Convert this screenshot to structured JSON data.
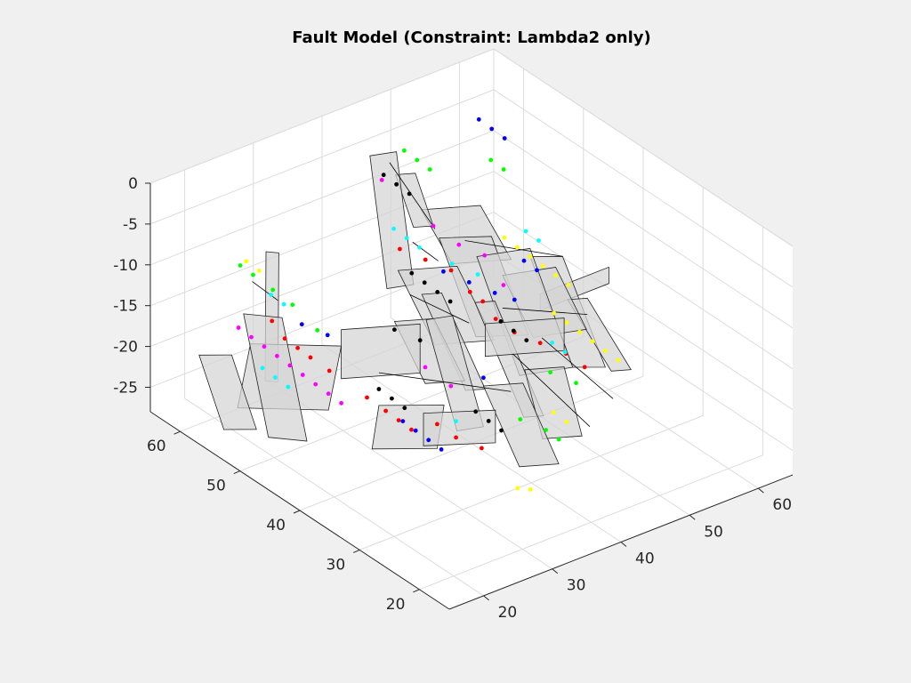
{
  "chart_data": {
    "type": "scatter",
    "title": "Fault Model (Constraint: Lambda2 only)",
    "xlabel": "",
    "ylabel": "",
    "zlabel": "",
    "xlim": [
      15,
      65
    ],
    "ylim": [
      15,
      65
    ],
    "zlim": [
      -28,
      0
    ],
    "x_ticks": [
      "20",
      "30",
      "40",
      "50",
      "60"
    ],
    "y_ticks": [
      "20",
      "30",
      "40",
      "50",
      "60"
    ],
    "z_ticks": [
      "0",
      "-5",
      "-10",
      "-15",
      "-20",
      "-25"
    ],
    "grid": true,
    "view": "3d-perspective",
    "colors": [
      "#ff0000",
      "#00ff00",
      "#0000ff",
      "#00ffff",
      "#ff00ff",
      "#ffff00",
      "#000000"
    ],
    "fault_color": "#c8c8c8",
    "series": [
      {
        "color": "#ff0000",
        "points": [
          [
            24,
            55,
            -15
          ],
          [
            25,
            54,
            -17
          ],
          [
            26,
            53,
            -18
          ],
          [
            27,
            52,
            -19
          ],
          [
            28,
            50,
            -20
          ],
          [
            30,
            46,
            -22
          ],
          [
            31,
            44,
            -23
          ],
          [
            32,
            43,
            -24
          ],
          [
            33,
            42,
            -25
          ],
          [
            35,
            40,
            -24
          ],
          [
            36,
            38,
            -25
          ],
          [
            38,
            36,
            -26
          ],
          [
            40,
            52,
            -10
          ],
          [
            42,
            50,
            -11
          ],
          [
            44,
            48,
            -12
          ],
          [
            45,
            46,
            -14
          ],
          [
            46,
            45,
            -15
          ],
          [
            47,
            44,
            -17
          ],
          [
            48,
            42,
            -18
          ],
          [
            50,
            40,
            -19
          ],
          [
            52,
            38,
            -20
          ],
          [
            53,
            36,
            -21
          ]
        ]
      },
      {
        "color": "#00ff00",
        "points": [
          [
            22,
            58,
            -9
          ],
          [
            23,
            57,
            -10
          ],
          [
            25,
            56,
            -12
          ],
          [
            27,
            55,
            -14
          ],
          [
            28,
            52,
            -16
          ],
          [
            45,
            57,
            -2
          ],
          [
            46,
            56,
            -3
          ],
          [
            47,
            55,
            -4
          ],
          [
            55,
            54,
            -5
          ],
          [
            56,
            53,
            -6
          ],
          [
            41,
            33,
            -22
          ],
          [
            43,
            31,
            -23
          ],
          [
            44,
            30,
            -24
          ],
          [
            48,
            36,
            -20
          ],
          [
            50,
            34,
            -21
          ]
        ]
      },
      {
        "color": "#0000ff",
        "points": [
          [
            55,
            56,
            -1
          ],
          [
            56,
            55,
            -2
          ],
          [
            57,
            54,
            -3
          ],
          [
            24,
            50,
            -13
          ],
          [
            26,
            48,
            -14
          ],
          [
            30,
            40,
            -22
          ],
          [
            31,
            39,
            -23
          ],
          [
            32,
            38,
            -24
          ],
          [
            33,
            37,
            -25
          ],
          [
            42,
            47,
            -11
          ],
          [
            44,
            45,
            -12
          ],
          [
            46,
            43,
            -13
          ],
          [
            48,
            42,
            -14
          ],
          [
            52,
            45,
            -12
          ],
          [
            53,
            44,
            -13
          ],
          [
            40,
            38,
            -19
          ]
        ]
      },
      {
        "color": "#00ffff",
        "points": [
          [
            23,
            54,
            -11
          ],
          [
            24,
            53,
            -12
          ],
          [
            20,
            52,
            -18
          ],
          [
            21,
            51,
            -19
          ],
          [
            22,
            50,
            -20
          ],
          [
            40,
            53,
            -8
          ],
          [
            41,
            52,
            -9
          ],
          [
            42,
            51,
            -10
          ],
          [
            45,
            49,
            -12
          ],
          [
            47,
            47,
            -13
          ],
          [
            54,
            47,
            -10
          ],
          [
            55,
            46,
            -11
          ],
          [
            50,
            38,
            -18
          ],
          [
            51,
            37,
            -19
          ],
          [
            36,
            38,
            -23
          ]
        ]
      },
      {
        "color": "#ff00ff",
        "points": [
          [
            20,
            56,
            -15
          ],
          [
            21,
            55,
            -16
          ],
          [
            22,
            54,
            -17
          ],
          [
            23,
            53,
            -18
          ],
          [
            24,
            52,
            -19
          ],
          [
            25,
            51,
            -20
          ],
          [
            26,
            50,
            -21
          ],
          [
            27,
            49,
            -22
          ],
          [
            28,
            48,
            -23
          ],
          [
            40,
            55,
            -3
          ],
          [
            44,
            51,
            -8
          ],
          [
            46,
            49,
            -10
          ],
          [
            48,
            47,
            -11
          ],
          [
            35,
            42,
            -18
          ],
          [
            37,
            40,
            -20
          ],
          [
            49,
            45,
            -14
          ]
        ]
      },
      {
        "color": "#ffff00",
        "points": [
          [
            22,
            57,
            -8
          ],
          [
            23,
            56,
            -9
          ],
          [
            50,
            46,
            -9
          ],
          [
            51,
            45,
            -10
          ],
          [
            52,
            44,
            -11
          ],
          [
            53,
            43,
            -12
          ],
          [
            54,
            42,
            -13
          ],
          [
            55,
            41,
            -14
          ],
          [
            52,
            40,
            -16
          ],
          [
            53,
            39,
            -17
          ],
          [
            54,
            38,
            -18
          ],
          [
            55,
            37,
            -19
          ],
          [
            56,
            36,
            -20
          ],
          [
            57,
            35,
            -21
          ],
          [
            45,
            32,
            -22
          ],
          [
            46,
            31,
            -23
          ],
          [
            38,
            30,
            -28
          ],
          [
            39,
            29,
            -28
          ]
        ]
      },
      {
        "color": "#000000",
        "points": [
          [
            42,
            57,
            -4
          ],
          [
            43,
            56,
            -5
          ],
          [
            44,
            55,
            -6
          ],
          [
            40,
            50,
            -12
          ],
          [
            41,
            49,
            -13
          ],
          [
            42,
            48,
            -14
          ],
          [
            43,
            47,
            -15
          ],
          [
            30,
            44,
            -20
          ],
          [
            31,
            43,
            -21
          ],
          [
            32,
            42,
            -22
          ],
          [
            38,
            37,
            -22
          ],
          [
            39,
            36,
            -23
          ],
          [
            40,
            35,
            -24
          ],
          [
            46,
            42,
            -16
          ],
          [
            47,
            41,
            -17
          ],
          [
            48,
            40,
            -18
          ],
          [
            36,
            44,
            -16
          ],
          [
            34,
            46,
            -15
          ]
        ]
      }
    ],
    "faults": [
      [
        [
          24,
          56,
          -7
        ],
        [
          25,
          55,
          -7
        ],
        [
          24,
          54,
          -22
        ],
        [
          23,
          55,
          -22
        ]
      ],
      [
        [
          20,
          54,
          -16
        ],
        [
          28,
          48,
          -16
        ],
        [
          27,
          49,
          -24
        ],
        [
          19,
          55,
          -24
        ]
      ],
      [
        [
          19,
          54,
          -12
        ],
        [
          22,
          51,
          -12
        ],
        [
          23,
          48,
          -26
        ],
        [
          20,
          51,
          -26
        ]
      ],
      [
        [
          16,
          58,
          -18
        ],
        [
          19,
          56,
          -18
        ],
        [
          20,
          53,
          -26
        ],
        [
          17,
          55,
          -26
        ]
      ],
      [
        [
          28,
          48,
          -14
        ],
        [
          36,
          44,
          -14
        ],
        [
          36,
          44,
          -20
        ],
        [
          28,
          48,
          -20
        ]
      ],
      [
        [
          30,
          44,
          -22
        ],
        [
          36,
          40,
          -22
        ],
        [
          35,
          40,
          -27
        ],
        [
          29,
          44,
          -27
        ]
      ],
      [
        [
          33,
          40,
          -22
        ],
        [
          40,
          36,
          -22
        ],
        [
          40,
          36,
          -26
        ],
        [
          33,
          40,
          -26
        ]
      ],
      [
        [
          36,
          43,
          -13
        ],
        [
          39,
          42,
          -13
        ],
        [
          40,
          38,
          -25
        ],
        [
          37,
          39,
          -25
        ]
      ],
      [
        [
          40,
          57,
          -1
        ],
        [
          43,
          56,
          -1
        ],
        [
          42,
          52,
          -15
        ],
        [
          39,
          53,
          -15
        ]
      ],
      [
        [
          42,
          55,
          -3
        ],
        [
          44,
          54,
          -3
        ],
        [
          44,
          51,
          -8
        ],
        [
          42,
          52,
          -8
        ]
      ],
      [
        [
          44,
          53,
          -7
        ],
        [
          50,
          50,
          -7
        ],
        [
          51,
          46,
          -12
        ],
        [
          45,
          49,
          -12
        ]
      ],
      [
        [
          44,
          50,
          -9
        ],
        [
          49,
          47,
          -9
        ],
        [
          50,
          42,
          -19
        ],
        [
          45,
          45,
          -19
        ]
      ],
      [
        [
          38,
          50,
          -11
        ],
        [
          44,
          47,
          -11
        ],
        [
          45,
          42,
          -18
        ],
        [
          39,
          45,
          -18
        ]
      ],
      [
        [
          46,
          46,
          -10
        ],
        [
          52,
          44,
          -10
        ],
        [
          53,
          38,
          -22
        ],
        [
          47,
          40,
          -22
        ]
      ],
      [
        [
          48,
          44,
          -12
        ],
        [
          54,
          42,
          -12
        ],
        [
          55,
          38,
          -18
        ],
        [
          49,
          40,
          -18
        ]
      ],
      [
        [
          52,
          44,
          -11
        ],
        [
          55,
          42,
          -11
        ],
        [
          56,
          36,
          -22
        ],
        [
          53,
          38,
          -22
        ]
      ],
      [
        [
          54,
          40,
          -15
        ],
        [
          56,
          39,
          -15
        ],
        [
          58,
          34,
          -22
        ],
        [
          56,
          35,
          -22
        ]
      ],
      [
        [
          44,
          44,
          -14
        ],
        [
          46,
          43,
          -14
        ],
        [
          47,
          36,
          -25
        ],
        [
          45,
          37,
          -25
        ]
      ],
      [
        [
          40,
          38,
          -20
        ],
        [
          44,
          36,
          -20
        ],
        [
          44,
          30,
          -27
        ],
        [
          40,
          32,
          -27
        ]
      ],
      [
        [
          46,
          38,
          -20
        ],
        [
          50,
          36,
          -20
        ],
        [
          50,
          33,
          -27
        ],
        [
          46,
          35,
          -27
        ]
      ],
      [
        [
          42,
          40,
          -14
        ],
        [
          50,
          36,
          -14
        ],
        [
          50,
          36,
          -18
        ],
        [
          42,
          40,
          -18
        ]
      ],
      [
        [
          50,
          40,
          -13
        ],
        [
          60,
          40,
          -13
        ],
        [
          60,
          40,
          -15
        ],
        [
          50,
          40,
          -15
        ]
      ],
      [
        [
          38,
          46,
          -12
        ],
        [
          40,
          45,
          -12
        ],
        [
          42,
          40,
          -22
        ],
        [
          40,
          41,
          -22
        ]
      ],
      [
        [
          34,
          46,
          -14
        ],
        [
          38,
          44,
          -14
        ],
        [
          39,
          40,
          -20
        ],
        [
          35,
          42,
          -20
        ]
      ]
    ],
    "traces": [
      [
        [
          42,
          56,
          -2
        ],
        [
          46,
          53,
          -10
        ]
      ],
      [
        [
          41,
          51,
          -9
        ],
        [
          43,
          49,
          -11
        ]
      ],
      [
        [
          38,
          48,
          -13
        ],
        [
          44,
          45,
          -17
        ]
      ],
      [
        [
          30,
          44,
          -18
        ],
        [
          44,
          38,
          -22
        ]
      ],
      [
        [
          46,
          40,
          -19
        ],
        [
          52,
          34,
          -27
        ]
      ],
      [
        [
          52,
          42,
          -20
        ],
        [
          58,
          37,
          -27
        ]
      ],
      [
        [
          22,
          56,
          -10
        ],
        [
          24,
          54,
          -12
        ]
      ],
      [
        [
          46,
          48,
          -9
        ],
        [
          55,
          42,
          -11
        ]
      ],
      [
        [
          48,
          44,
          -16
        ],
        [
          56,
          39,
          -17
        ]
      ]
    ]
  }
}
